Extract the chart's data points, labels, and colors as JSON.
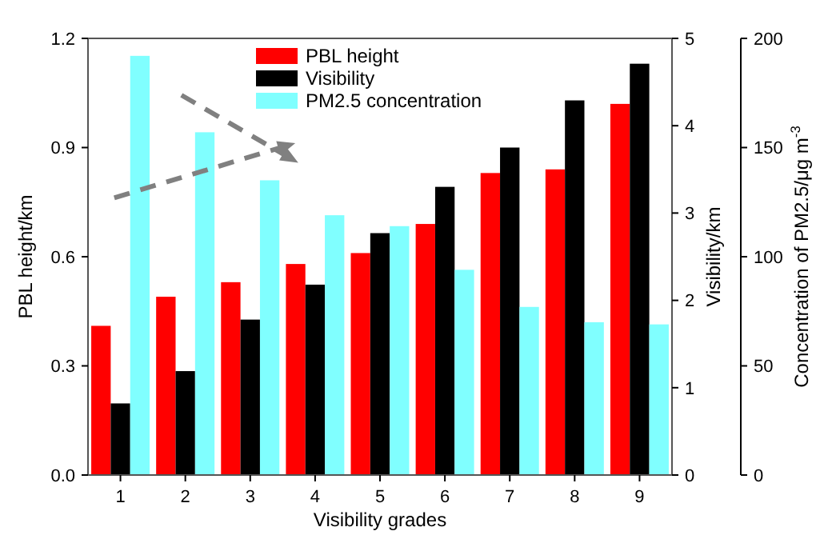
{
  "chart_data": {
    "type": "bar",
    "xlabel": "Visibility grades",
    "ylabel": "PBL height/km",
    "y2label": "Visibility/km",
    "y3label": "Concentration of PM2.5/μg m$^{-3}$",
    "categories": [
      "1",
      "2",
      "3",
      "4",
      "5",
      "6",
      "7",
      "8",
      "9"
    ],
    "series": [
      {
        "name": "PBL height",
        "color": "#ff0000",
        "values": [
          0.41,
          0.49,
          0.53,
          0.58,
          0.61,
          0.69,
          0.83,
          0.84,
          1.02
        ]
      },
      {
        "name": "Visibility",
        "color": "#000000",
        "axis": "y2",
        "values": [
          0.82,
          1.19,
          1.78,
          2.18,
          2.77,
          3.3,
          3.75,
          4.29,
          4.71
        ]
      },
      {
        "name": "PM2.5 concentration",
        "color": "#80ffff",
        "axis": "y3",
        "values": [
          192,
          157,
          135,
          119,
          114,
          94,
          77,
          70,
          69
        ]
      }
    ],
    "ylim": [
      0,
      1.2
    ],
    "yticks": [
      {
        "value": 0,
        "label": "0.0"
      },
      0.3,
      0.6,
      0.9,
      1.2
    ],
    "y2lim": [
      0,
      5
    ],
    "y2ticks": [
      0,
      1,
      2,
      3,
      4,
      5
    ],
    "y3lim": [
      0,
      200
    ],
    "y3ticks": [
      0,
      50,
      100,
      150,
      200
    ],
    "legend": "top",
    "grid": false
  }
}
